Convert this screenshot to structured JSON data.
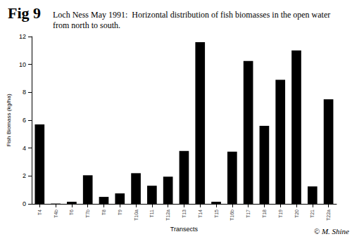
{
  "chart_data": {
    "type": "bar",
    "title": "Fig 9",
    "subtitle": "Loch Ness May 1991:  Horizontal distribution of fish biomasses in the open water from north to south.",
    "x_label": "Transects",
    "y_label": "Fish Biomass (kg/ha)",
    "annotation": "© M. Shine",
    "categories": [
      "T4",
      "T4b",
      "T6",
      "T7b",
      "T8",
      "T9",
      "T10a",
      "T11",
      "T12a",
      "T13",
      "T14",
      "T15",
      "T16b",
      "T17",
      "T18",
      "T19",
      "T20",
      "T21",
      "T22a"
    ],
    "values": [
      5.7,
      0.02,
      0.15,
      2.05,
      0.5,
      0.75,
      2.2,
      1.3,
      1.95,
      3.8,
      11.6,
      0.15,
      3.75,
      10.25,
      5.6,
      8.9,
      11.0,
      1.25,
      7.5
    ],
    "color": "#000000",
    "ylim": [
      0,
      12
    ],
    "yticks": [
      0,
      2,
      4,
      6,
      8,
      10,
      12
    ],
    "grid": false
  }
}
